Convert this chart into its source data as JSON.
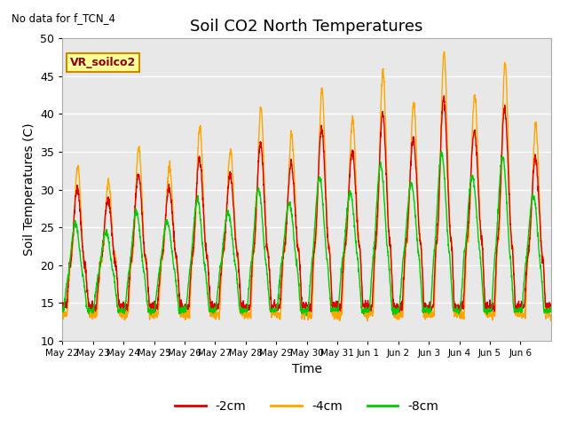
{
  "title": "Soil CO2 North Temperatures",
  "subtitle": "No data for f_TCN_4",
  "xlabel": "Time",
  "ylabel": "Soil Temperatures (C)",
  "ylim": [
    10,
    50
  ],
  "background_color": "#e8e8e8",
  "legend_entries": [
    "-2cm",
    "-4cm",
    "-8cm"
  ],
  "legend_colors": [
    "#dd0000",
    "#ffa500",
    "#00cc00"
  ],
  "annotation_text": "VR_soilco2",
  "annotation_box_color": "#ffff99",
  "annotation_border_color": "#cc8800",
  "x_tick_labels": [
    "May 22",
    "May 23",
    "May 24",
    "May 25",
    "May 26",
    "May 27",
    "May 28",
    "May 29",
    "May 30",
    "May 31",
    "Jun 1",
    "Jun 2",
    "Jun 3",
    "Jun 4",
    "Jun 5",
    "Jun 6"
  ],
  "yticks": [
    10,
    15,
    20,
    25,
    30,
    35,
    40,
    45,
    50
  ],
  "grid_color": "#ffffff",
  "spine_color": "#aaaaaa"
}
